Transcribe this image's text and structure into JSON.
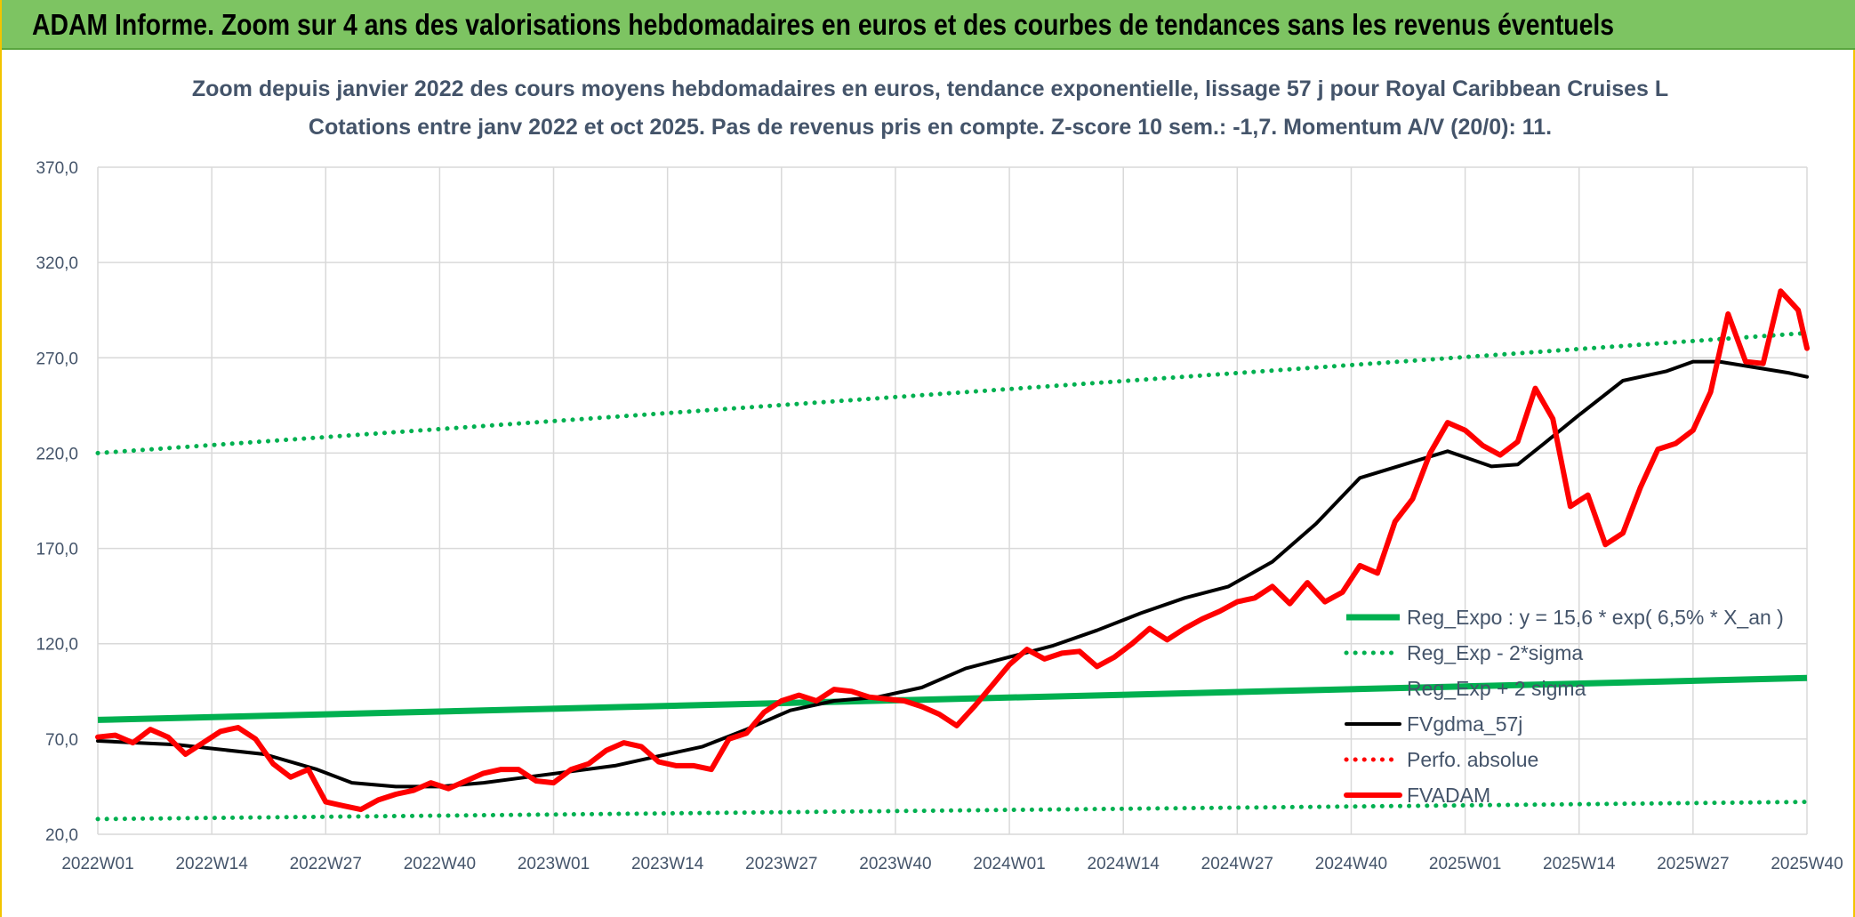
{
  "banner": {
    "title": "ADAM Informe. Zoom sur 4 ans des valorisations hebdomadaires en euros et des courbes de tendances sans les revenus éventuels"
  },
  "chart_data": {
    "type": "line",
    "title": "Zoom depuis janvier 2022 des cours moyens hebdomadaires en euros, tendance exponentielle, lissage 57 j pour Royal Caribbean Cruises L",
    "subtitle": "Cotations entre janv 2022 et oct 2025. Pas de revenus pris en compte. Z-score 10 sem.: -1,7. Momentum A/V (20/0): 11.",
    "xlabel": "",
    "ylabel": "",
    "ylim": [
      20,
      370
    ],
    "yticks": [
      "370,0",
      "320,0",
      "270,0",
      "220,0",
      "170,0",
      "120,0",
      "70,0",
      "20,0"
    ],
    "ytick_values": [
      370,
      320,
      270,
      220,
      170,
      120,
      70,
      20
    ],
    "xticks": [
      "2022W01",
      "2022W14",
      "2022W27",
      "2022W40",
      "2023W01",
      "2023W14",
      "2023W27",
      "2023W40",
      "2024W01",
      "2024W14",
      "2024W27",
      "2024W40",
      "2025W01",
      "2025W14",
      "2025W27",
      "2025W40"
    ],
    "xlim": [
      1,
      196
    ],
    "x_unit": "week index (1 = 2022W01)",
    "grid": true,
    "legend_position": "lower-right",
    "series": [
      {
        "name": "Reg_Expo : y = 15,6 * exp( 6,5% *  X_an )",
        "style": "solid-thick",
        "color": "#00b050",
        "x": [
          1,
          196
        ],
        "y": [
          80,
          102
        ]
      },
      {
        "name": "Reg_Exp - 2*sigma",
        "style": "dotted",
        "color": "#00b050",
        "x": [
          1,
          196
        ],
        "y": [
          28,
          37
        ]
      },
      {
        "name": "Reg_Exp + 2 sigma",
        "style": "dotted",
        "color": "#00b050",
        "x": [
          1,
          196
        ],
        "y": [
          220,
          283
        ]
      },
      {
        "name": "FVgdma_57j",
        "style": "solid",
        "color": "#000000",
        "x": [
          1,
          10,
          20,
          26,
          30,
          35,
          40,
          45,
          50,
          55,
          60,
          65,
          70,
          75,
          80,
          85,
          90,
          95,
          100,
          105,
          110,
          115,
          120,
          125,
          130,
          135,
          140,
          145,
          150,
          155,
          160,
          163,
          166,
          170,
          175,
          180,
          183,
          186,
          190,
          194,
          196
        ],
        "y": [
          69,
          67,
          62,
          54,
          47,
          45,
          45,
          47,
          50,
          53,
          56,
          61,
          66,
          75,
          85,
          90,
          92,
          97,
          107,
          113,
          119,
          127,
          136,
          144,
          150,
          163,
          183,
          207,
          214,
          221,
          213,
          214,
          225,
          240,
          258,
          263,
          268,
          268,
          265,
          262,
          260
        ]
      },
      {
        "name": "Perfo. absolue",
        "style": "dotted",
        "color": "#ff0000",
        "x": [],
        "y": []
      },
      {
        "name": "FVADAM",
        "style": "solid-thick",
        "color": "#ff0000",
        "x": [
          1,
          3,
          5,
          7,
          9,
          11,
          13,
          15,
          17,
          19,
          21,
          23,
          25,
          27,
          29,
          31,
          33,
          35,
          37,
          39,
          41,
          43,
          45,
          47,
          49,
          51,
          53,
          55,
          57,
          59,
          61,
          63,
          65,
          67,
          69,
          71,
          73,
          75,
          77,
          79,
          81,
          83,
          85,
          87,
          89,
          91,
          93,
          95,
          97,
          99,
          101,
          103,
          105,
          107,
          109,
          111,
          113,
          115,
          117,
          119,
          121,
          123,
          125,
          127,
          129,
          131,
          133,
          135,
          137,
          139,
          141,
          143,
          145,
          147,
          149,
          151,
          153,
          155,
          157,
          159,
          161,
          163,
          165,
          167,
          169,
          171,
          173,
          175,
          177,
          179,
          181,
          183,
          185,
          187,
          189,
          191,
          193,
          195,
          196
        ],
        "y": [
          71,
          72,
          68,
          75,
          71,
          62,
          68,
          74,
          76,
          70,
          57,
          50,
          54,
          37,
          35,
          33,
          38,
          41,
          43,
          47,
          44,
          48,
          52,
          54,
          54,
          48,
          47,
          54,
          57,
          64,
          68,
          66,
          58,
          56,
          56,
          54,
          70,
          73,
          84,
          90,
          93,
          90,
          96,
          95,
          92,
          91,
          90,
          87,
          83,
          77,
          87,
          98,
          109,
          117,
          112,
          115,
          116,
          108,
          113,
          120,
          128,
          122,
          128,
          133,
          137,
          142,
          144,
          150,
          141,
          152,
          142,
          147,
          161,
          157,
          184,
          196,
          220,
          236,
          232,
          224,
          219,
          226,
          254,
          238,
          192,
          198,
          172,
          178,
          202,
          222,
          225,
          232,
          252,
          293,
          268,
          267,
          305,
          295,
          275
        ]
      }
    ]
  }
}
